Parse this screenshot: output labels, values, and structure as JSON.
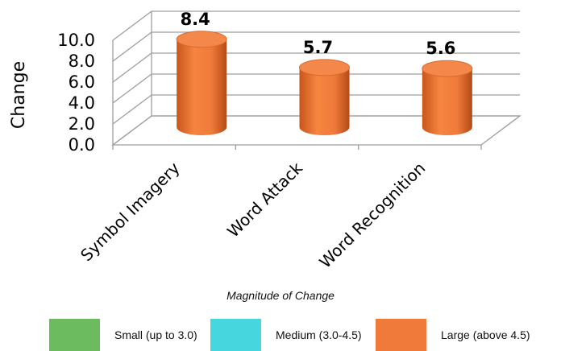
{
  "chart_data": {
    "type": "bar",
    "style": "3d-cylinder",
    "categories": [
      "Symbol Imagery",
      "Word Attack",
      "Word Recognition"
    ],
    "values": [
      8.4,
      5.7,
      5.6
    ],
    "value_labels": [
      "8.4",
      "5.7",
      "5.6"
    ],
    "ylabel": "Change",
    "xlabel": "",
    "ylim": [
      0,
      10
    ],
    "yticks": [
      "0.0",
      "2.0",
      "4.0",
      "6.0",
      "8.0",
      "10.0"
    ],
    "grid": true,
    "bar_color": "#F07A3A"
  },
  "note": "Magnitude of Change",
  "legend": [
    {
      "label": "Small (up to 3.0)",
      "color": "#6CBB5F"
    },
    {
      "label": "Medium (3.0-4.5)",
      "color": "#45D6DE"
    },
    {
      "label": "Large (above 4.5)",
      "color": "#F07A3A"
    }
  ]
}
